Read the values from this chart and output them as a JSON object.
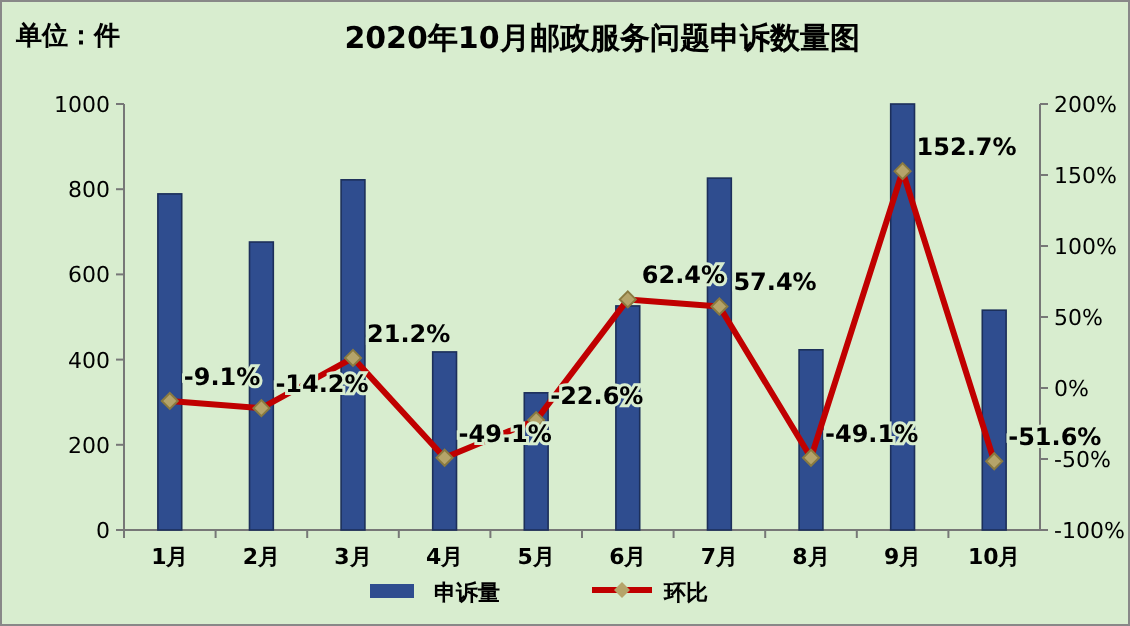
{
  "chart_data": {
    "type": "bar",
    "title": "2020年10月邮政服务问题申诉数量图",
    "annotations": [
      "单位：件"
    ],
    "categories": [
      "1月",
      "2月",
      "3月",
      "4月",
      "5月",
      "6月",
      "7月",
      "8月",
      "9月",
      "10月"
    ],
    "series": [
      {
        "name": "申诉量",
        "color": "#2f4d8f",
        "values": [
          789,
          676,
          822,
          418,
          322,
          526,
          826,
          423,
          1000,
          516
        ]
      },
      {
        "name": "环比",
        "type": "line",
        "axis": "y2",
        "color": "#c00000",
        "marker": "diamond",
        "values": [
          -9.1,
          -14.2,
          21.2,
          -49.1,
          -22.6,
          62.4,
          57.4,
          -49.1,
          152.7,
          -51.6
        ],
        "value_labels": [
          "-9.1%",
          "-14.2%",
          "21.2%",
          "-49.1%",
          "-22.6%",
          "62.4%",
          "57.4%",
          "-49.1%",
          "152.7%",
          "-51.6%"
        ]
      }
    ],
    "ylim": [
      0,
      1000
    ],
    "yticks": [
      0,
      200,
      400,
      600,
      800,
      1000
    ],
    "y2lim": [
      -100,
      200
    ],
    "y2ticks": [
      {
        "value": -100,
        "label": "-100%"
      },
      {
        "value": -50,
        "label": "-50%"
      },
      {
        "value": 0,
        "label": "0%"
      },
      {
        "value": 50,
        "label": "50%"
      },
      {
        "value": 100,
        "label": "100%"
      },
      {
        "value": 150,
        "label": "150%"
      },
      {
        "value": 200,
        "label": "200%"
      }
    ],
    "grid": false,
    "legend": "bottom"
  }
}
